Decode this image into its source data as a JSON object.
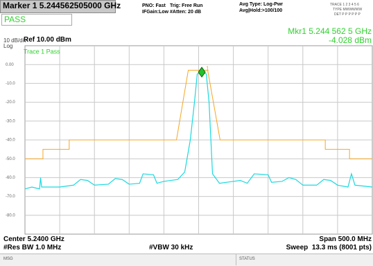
{
  "header": {
    "marker_title": "Marker 1 5.244562505000 GHz",
    "pass": "PASS",
    "pno": "PNO: Fast",
    "ifgain": "IFGain:Low",
    "trig": "Trig: Free Run",
    "atten": "#Atten: 20 dB",
    "avg_type": "Avg Type: Log-Pwr",
    "avg_hold": "Avg|Hold:>100/100",
    "trace_row": "TRACE 1 2 3 4 5 6",
    "type_row": "TYPE MWWWWW",
    "det_row": "DET P P P P P P",
    "mkr_freq": "Mkr1 5.244 562 5 GHz",
    "mkr_amp": "-4.028 dBm",
    "scale": "10 dB/div",
    "ref": "Ref 10.00 dBm",
    "log": "Log"
  },
  "chart_data": {
    "type": "line",
    "annotation": "Trace 1 Pass",
    "ylim": [
      -90,
      10
    ],
    "xlim": [
      4.99,
      5.49
    ],
    "grid": true,
    "yticks": [
      {
        "value": 0,
        "label": "0.00"
      },
      {
        "value": -10,
        "label": "-10.0"
      },
      {
        "value": -20,
        "label": "-20.0"
      },
      {
        "value": -30,
        "label": "-30.0"
      },
      {
        "value": -40,
        "label": "-40.0"
      },
      {
        "value": -50,
        "label": "-50.0"
      },
      {
        "value": -60,
        "label": "-60.0"
      },
      {
        "value": -70,
        "label": "-70.0"
      },
      {
        "value": -80,
        "label": "-80.0"
      }
    ],
    "series": [
      {
        "name": "Trace 1",
        "color": "#19d9e0",
        "x": [
          4.99,
          5.0,
          5.011,
          5.0125,
          5.014,
          5.04,
          5.05,
          5.06,
          5.07,
          5.08,
          5.09,
          5.11,
          5.12,
          5.13,
          5.14,
          5.155,
          5.16,
          5.175,
          5.18,
          5.19,
          5.21,
          5.22,
          5.228,
          5.234,
          5.238,
          5.2446,
          5.251,
          5.255,
          5.26,
          5.27,
          5.29,
          5.3,
          5.31,
          5.32,
          5.34,
          5.345,
          5.36,
          5.37,
          5.38,
          5.39,
          5.41,
          5.42,
          5.43,
          5.44,
          5.455,
          5.46,
          5.465,
          5.49
        ],
        "values": [
          -66,
          -65,
          -66,
          -60,
          -65,
          -65,
          -64.5,
          -64,
          -61,
          -61.5,
          -64,
          -63.5,
          -60.5,
          -61,
          -63.5,
          -63,
          -58,
          -58.5,
          -63,
          -62,
          -61,
          -57,
          -40,
          -20,
          -5,
          -4,
          -5,
          -20,
          -58,
          -63,
          -62,
          -61.5,
          -63,
          -58,
          -58.5,
          -62.5,
          -62,
          -60,
          -61,
          -64,
          -64,
          -61,
          -61.5,
          -64,
          -65,
          -58,
          -64,
          -65
        ]
      },
      {
        "name": "Mask",
        "color": "#f5a623",
        "x": [
          4.99,
          5.0159,
          5.0159,
          5.0537,
          5.0537,
          5.2081,
          5.2251,
          5.253,
          5.2709,
          5.4223,
          5.4223,
          5.4572,
          5.4572,
          5.49
        ],
        "values": [
          -50,
          -50,
          -45,
          -45,
          -40,
          -40,
          -3,
          -3,
          -40,
          -40,
          -45,
          -45,
          -50,
          -50
        ]
      }
    ],
    "marker": {
      "x": 5.2445625,
      "y": -4.028,
      "label": "1",
      "color": "#22c02a"
    }
  },
  "footer": {
    "center": "Center 5.2400 GHz",
    "rbw": "#Res BW 1.0 MHz",
    "vbw": "#VBW 30 kHz",
    "span": "Span 500.0 MHz",
    "sweep": "Sweep  13.3 ms (8001 pts)",
    "msg": "MSG",
    "status": "STATUS"
  }
}
